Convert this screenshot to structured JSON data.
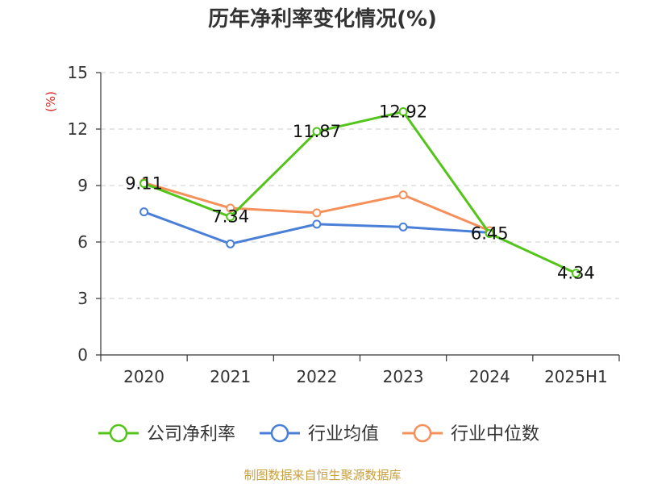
{
  "chart_data": {
    "type": "line",
    "title": "历年净利率变化情况(%)",
    "ylabel": "(%)",
    "categories": [
      "2020",
      "2021",
      "2022",
      "2023",
      "2024",
      "2025H1"
    ],
    "ylim": [
      0,
      15
    ],
    "yticks": [
      0,
      3,
      6,
      9,
      12,
      15
    ],
    "grid": true,
    "legend_position": "bottom",
    "series": [
      {
        "name": "公司净利率",
        "color": "#52c41a",
        "values": [
          9.11,
          7.34,
          11.87,
          12.92,
          6.45,
          4.34
        ],
        "labels": [
          "9.11",
          "7.34",
          "11.87",
          "12.92",
          "6.45",
          "4.34"
        ]
      },
      {
        "name": "行业均值",
        "color": "#4a7fd8",
        "values": [
          7.6,
          5.9,
          6.95,
          6.8,
          6.5,
          null
        ]
      },
      {
        "name": "行业中位数",
        "color": "#f5905a",
        "values": [
          9.15,
          7.8,
          7.55,
          8.5,
          6.6,
          null
        ]
      }
    ]
  },
  "source": "制图数据来自恒生聚源数据库"
}
